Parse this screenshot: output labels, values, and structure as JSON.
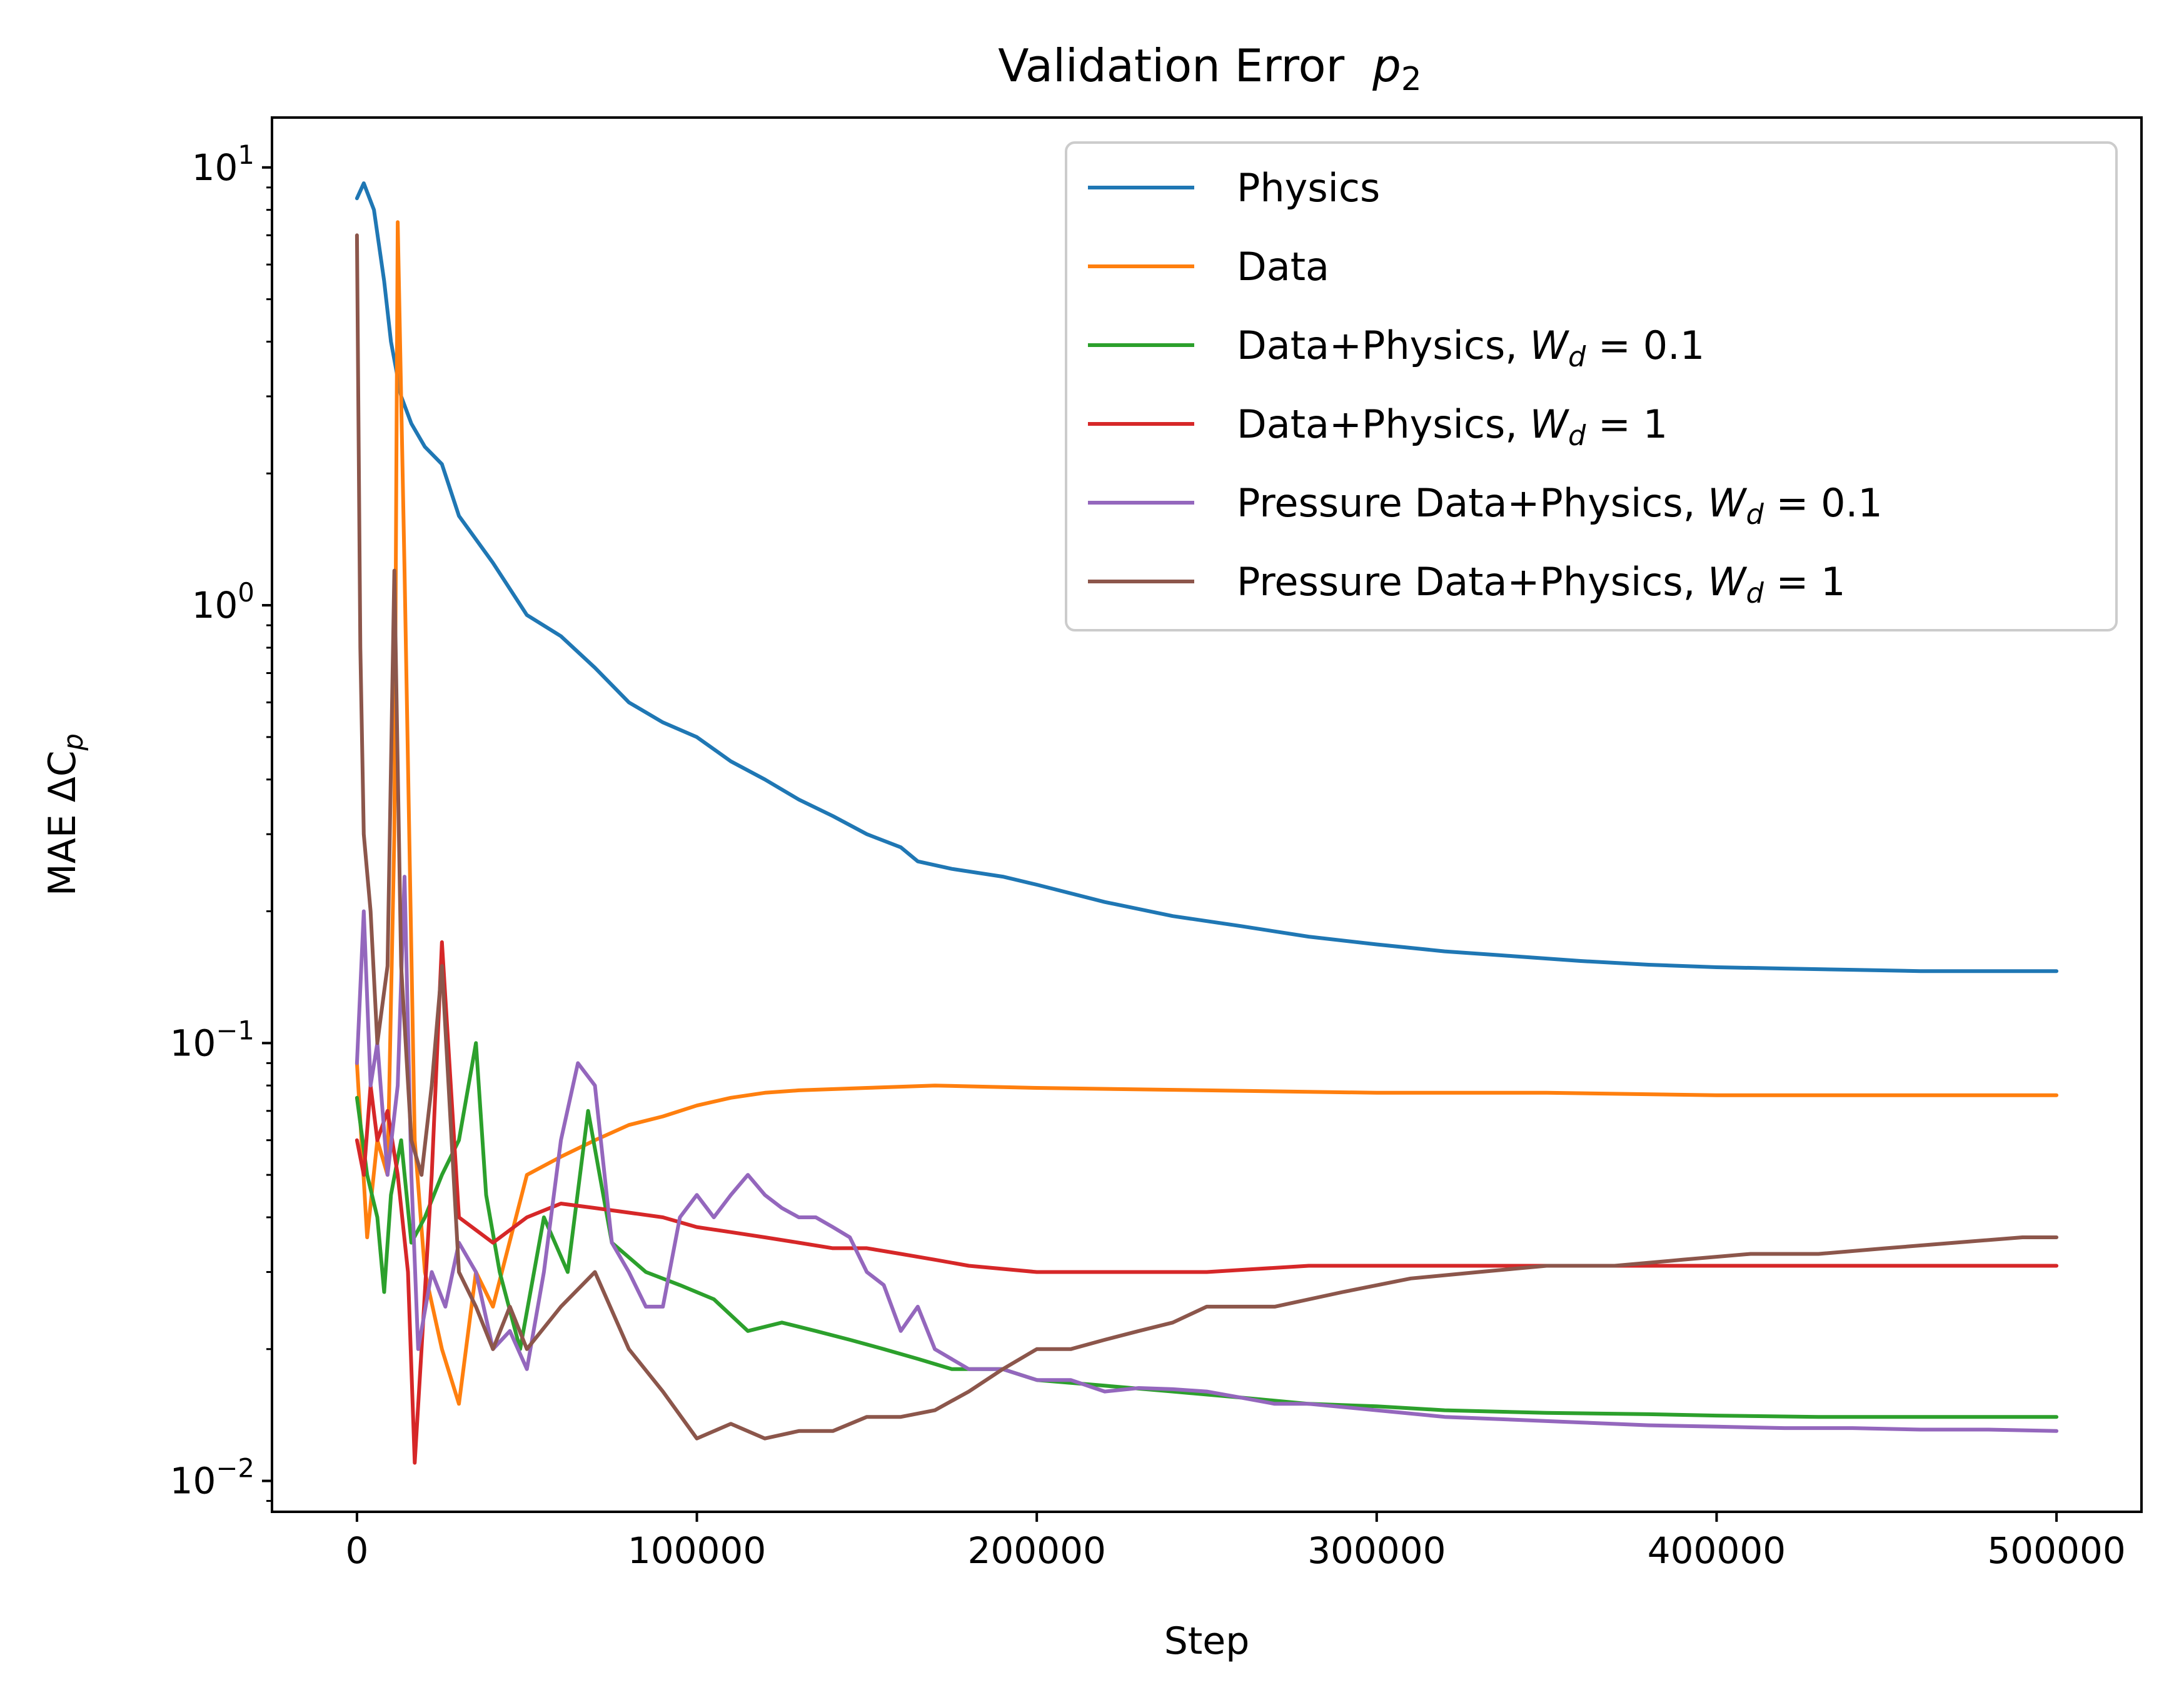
{
  "chart_data": {
    "type": "line",
    "title": "Validation Error",
    "title_math": "p",
    "title_math_sub": "2",
    "xlabel": "Step",
    "ylabel": "MAE ΔC",
    "ylabel_sub": "p",
    "y_scale": "log",
    "xlim": [
      -25000,
      525000
    ],
    "ylim": [
      0.0085,
      13
    ],
    "x_ticks": [
      0,
      100000,
      200000,
      300000,
      400000,
      500000
    ],
    "x_tick_labels": [
      "0",
      "100000",
      "200000",
      "300000",
      "400000",
      "500000"
    ],
    "y_ticks": [
      0.01,
      0.1,
      1,
      10
    ],
    "y_tick_base": "10",
    "y_tick_exponents": [
      "−2",
      "−1",
      "0",
      "1"
    ],
    "grid": false,
    "legend_position": "top-right",
    "series": [
      {
        "name": "Physics",
        "color": "#1f77b4",
        "x": [
          0,
          2000,
          5000,
          8000,
          10000,
          13000,
          16000,
          20000,
          25000,
          30000,
          40000,
          50000,
          60000,
          70000,
          80000,
          90000,
          100000,
          110000,
          120000,
          130000,
          140000,
          150000,
          160000,
          165000,
          175000,
          190000,
          200000,
          220000,
          240000,
          260000,
          280000,
          300000,
          320000,
          340000,
          360000,
          380000,
          400000,
          420000,
          440000,
          460000,
          480000,
          500000
        ],
        "y": [
          8.5,
          9.2,
          8.0,
          5.5,
          4.0,
          3.0,
          2.6,
          2.3,
          2.1,
          1.6,
          1.25,
          0.95,
          0.85,
          0.72,
          0.6,
          0.54,
          0.5,
          0.44,
          0.4,
          0.36,
          0.33,
          0.3,
          0.28,
          0.26,
          0.25,
          0.24,
          0.23,
          0.21,
          0.195,
          0.185,
          0.175,
          0.168,
          0.162,
          0.158,
          0.154,
          0.151,
          0.149,
          0.148,
          0.147,
          0.146,
          0.146,
          0.146
        ]
      },
      {
        "name": "Data",
        "color": "#ff7f0e",
        "x": [
          0,
          3000,
          6000,
          9000,
          11000,
          12000,
          14000,
          17000,
          20000,
          25000,
          30000,
          35000,
          40000,
          50000,
          60000,
          70000,
          80000,
          90000,
          100000,
          110000,
          120000,
          130000,
          150000,
          170000,
          200000,
          250000,
          300000,
          350000,
          400000,
          450000,
          500000
        ],
        "y": [
          0.09,
          0.036,
          0.06,
          0.05,
          0.3,
          7.5,
          1.2,
          0.06,
          0.03,
          0.02,
          0.015,
          0.03,
          0.025,
          0.05,
          0.055,
          0.06,
          0.065,
          0.068,
          0.072,
          0.075,
          0.077,
          0.078,
          0.079,
          0.08,
          0.079,
          0.078,
          0.077,
          0.077,
          0.076,
          0.076,
          0.076
        ]
      },
      {
        "name": "Data+Physics, W_d = 0.1",
        "legend_text": "Data+Physics, ",
        "legend_math": "W",
        "legend_math_sub": "d",
        "legend_value": " = 0.1",
        "color": "#2ca02c",
        "x": [
          0,
          3000,
          6000,
          8000,
          10000,
          13000,
          16000,
          20000,
          25000,
          30000,
          35000,
          38000,
          42000,
          48000,
          55000,
          62000,
          68000,
          75000,
          85000,
          95000,
          105000,
          115000,
          125000,
          135000,
          145000,
          155000,
          165000,
          175000,
          190000,
          200000,
          220000,
          240000,
          260000,
          280000,
          300000,
          320000,
          350000,
          380000,
          400000,
          430000,
          460000,
          500000
        ],
        "y": [
          0.075,
          0.05,
          0.04,
          0.027,
          0.045,
          0.06,
          0.035,
          0.04,
          0.05,
          0.06,
          0.1,
          0.045,
          0.03,
          0.02,
          0.04,
          0.03,
          0.07,
          0.035,
          0.03,
          0.028,
          0.026,
          0.022,
          0.023,
          0.022,
          0.021,
          0.02,
          0.019,
          0.018,
          0.018,
          0.017,
          0.0165,
          0.016,
          0.0155,
          0.015,
          0.0148,
          0.0145,
          0.0143,
          0.0142,
          0.0141,
          0.014,
          0.014,
          0.014
        ]
      },
      {
        "name": "Data+Physics, W_d = 1",
        "legend_text": "Data+Physics, ",
        "legend_math": "W",
        "legend_math_sub": "d",
        "legend_value": " = 1",
        "color": "#d62728",
        "x": [
          0,
          2000,
          4000,
          6000,
          9000,
          12000,
          15000,
          17000,
          19000,
          22000,
          25000,
          30000,
          40000,
          50000,
          60000,
          70000,
          80000,
          90000,
          100000,
          110000,
          120000,
          130000,
          140000,
          150000,
          160000,
          170000,
          180000,
          200000,
          220000,
          250000,
          280000,
          300000,
          350000,
          400000,
          450000,
          500000
        ],
        "y": [
          0.06,
          0.05,
          0.08,
          0.06,
          0.07,
          0.05,
          0.03,
          0.011,
          0.02,
          0.05,
          0.17,
          0.04,
          0.035,
          0.04,
          0.043,
          0.042,
          0.041,
          0.04,
          0.038,
          0.037,
          0.036,
          0.035,
          0.034,
          0.034,
          0.033,
          0.032,
          0.031,
          0.03,
          0.03,
          0.03,
          0.031,
          0.031,
          0.031,
          0.031,
          0.031,
          0.031
        ]
      },
      {
        "name": "Pressure Data+Physics, W_d = 0.1",
        "legend_text": "Pressure Data+Physics, ",
        "legend_math": "W",
        "legend_math_sub": "d",
        "legend_value": " = 0.1",
        "color": "#9467bd",
        "x": [
          0,
          2000,
          4000,
          6000,
          9000,
          12000,
          14000,
          16000,
          18000,
          22000,
          26000,
          30000,
          35000,
          40000,
          45000,
          50000,
          55000,
          60000,
          65000,
          70000,
          75000,
          80000,
          85000,
          90000,
          95000,
          100000,
          105000,
          110000,
          115000,
          120000,
          125000,
          130000,
          135000,
          140000,
          145000,
          150000,
          155000,
          160000,
          165000,
          170000,
          180000,
          190000,
          200000,
          210000,
          220000,
          230000,
          240000,
          250000,
          260000,
          270000,
          280000,
          300000,
          320000,
          340000,
          360000,
          380000,
          400000,
          420000,
          440000,
          460000,
          480000,
          500000
        ],
        "y": [
          0.09,
          0.2,
          0.08,
          0.1,
          0.05,
          0.08,
          0.24,
          0.05,
          0.02,
          0.03,
          0.025,
          0.035,
          0.03,
          0.02,
          0.022,
          0.018,
          0.03,
          0.06,
          0.09,
          0.08,
          0.035,
          0.03,
          0.025,
          0.025,
          0.04,
          0.045,
          0.04,
          0.045,
          0.05,
          0.045,
          0.042,
          0.04,
          0.04,
          0.038,
          0.036,
          0.03,
          0.028,
          0.022,
          0.025,
          0.02,
          0.018,
          0.018,
          0.017,
          0.017,
          0.016,
          0.0163,
          0.0162,
          0.016,
          0.0155,
          0.015,
          0.015,
          0.0145,
          0.014,
          0.0138,
          0.0136,
          0.0134,
          0.0133,
          0.0132,
          0.0132,
          0.0131,
          0.0131,
          0.013
        ]
      },
      {
        "name": "Pressure Data+Physics, W_d = 1",
        "legend_text": "Pressure Data+Physics, ",
        "legend_math": "W",
        "legend_math_sub": "d",
        "legend_value": " = 1",
        "color": "#8c564b",
        "x": [
          0,
          1000,
          2000,
          4000,
          6000,
          9000,
          11000,
          13000,
          16000,
          19000,
          22000,
          25000,
          30000,
          35000,
          40000,
          45000,
          50000,
          60000,
          70000,
          80000,
          90000,
          100000,
          110000,
          120000,
          130000,
          140000,
          150000,
          160000,
          170000,
          180000,
          190000,
          200000,
          210000,
          220000,
          230000,
          240000,
          250000,
          270000,
          290000,
          310000,
          330000,
          350000,
          370000,
          390000,
          410000,
          430000,
          450000,
          470000,
          490000,
          500000
        ],
        "y": [
          7.0,
          0.8,
          0.3,
          0.2,
          0.1,
          0.15,
          1.2,
          0.15,
          0.06,
          0.05,
          0.08,
          0.15,
          0.03,
          0.025,
          0.02,
          0.025,
          0.02,
          0.025,
          0.03,
          0.02,
          0.016,
          0.0125,
          0.0135,
          0.0125,
          0.013,
          0.013,
          0.014,
          0.014,
          0.0145,
          0.016,
          0.018,
          0.02,
          0.02,
          0.021,
          0.022,
          0.023,
          0.025,
          0.025,
          0.027,
          0.029,
          0.03,
          0.031,
          0.031,
          0.032,
          0.033,
          0.033,
          0.034,
          0.035,
          0.036,
          0.036
        ]
      }
    ]
  }
}
